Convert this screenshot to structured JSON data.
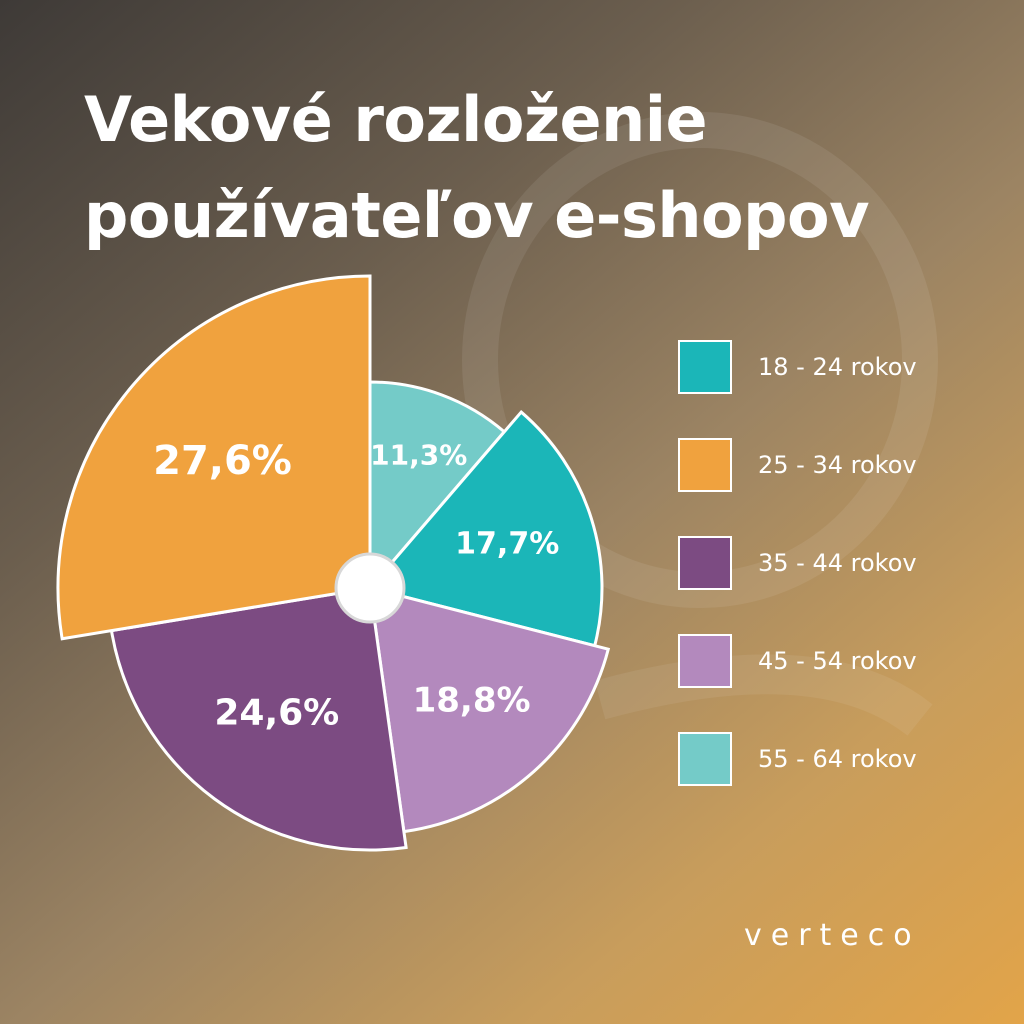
{
  "title_line1": "Vekové rozloženie",
  "title_line2": "používateľov e-shopov",
  "brand": "verteco",
  "chart_data": {
    "type": "pie",
    "title": "Vekové rozloženie používateľov e-shopov",
    "legend_position": "right",
    "categories": [
      "18 - 24 rokov",
      "25 - 34 rokov",
      "35 - 44 rokov",
      "45 - 54 rokov",
      "55 - 64 rokov"
    ],
    "values": [
      17.7,
      27.6,
      24.6,
      18.8,
      11.3
    ],
    "labels": [
      "17,7%",
      "27,6%",
      "24,6%",
      "18,8%",
      "11,3%"
    ],
    "colors": [
      "#1bb6b8",
      "#f0a23e",
      "#7c4b82",
      "#b389bd",
      "#74cbc8"
    ]
  }
}
